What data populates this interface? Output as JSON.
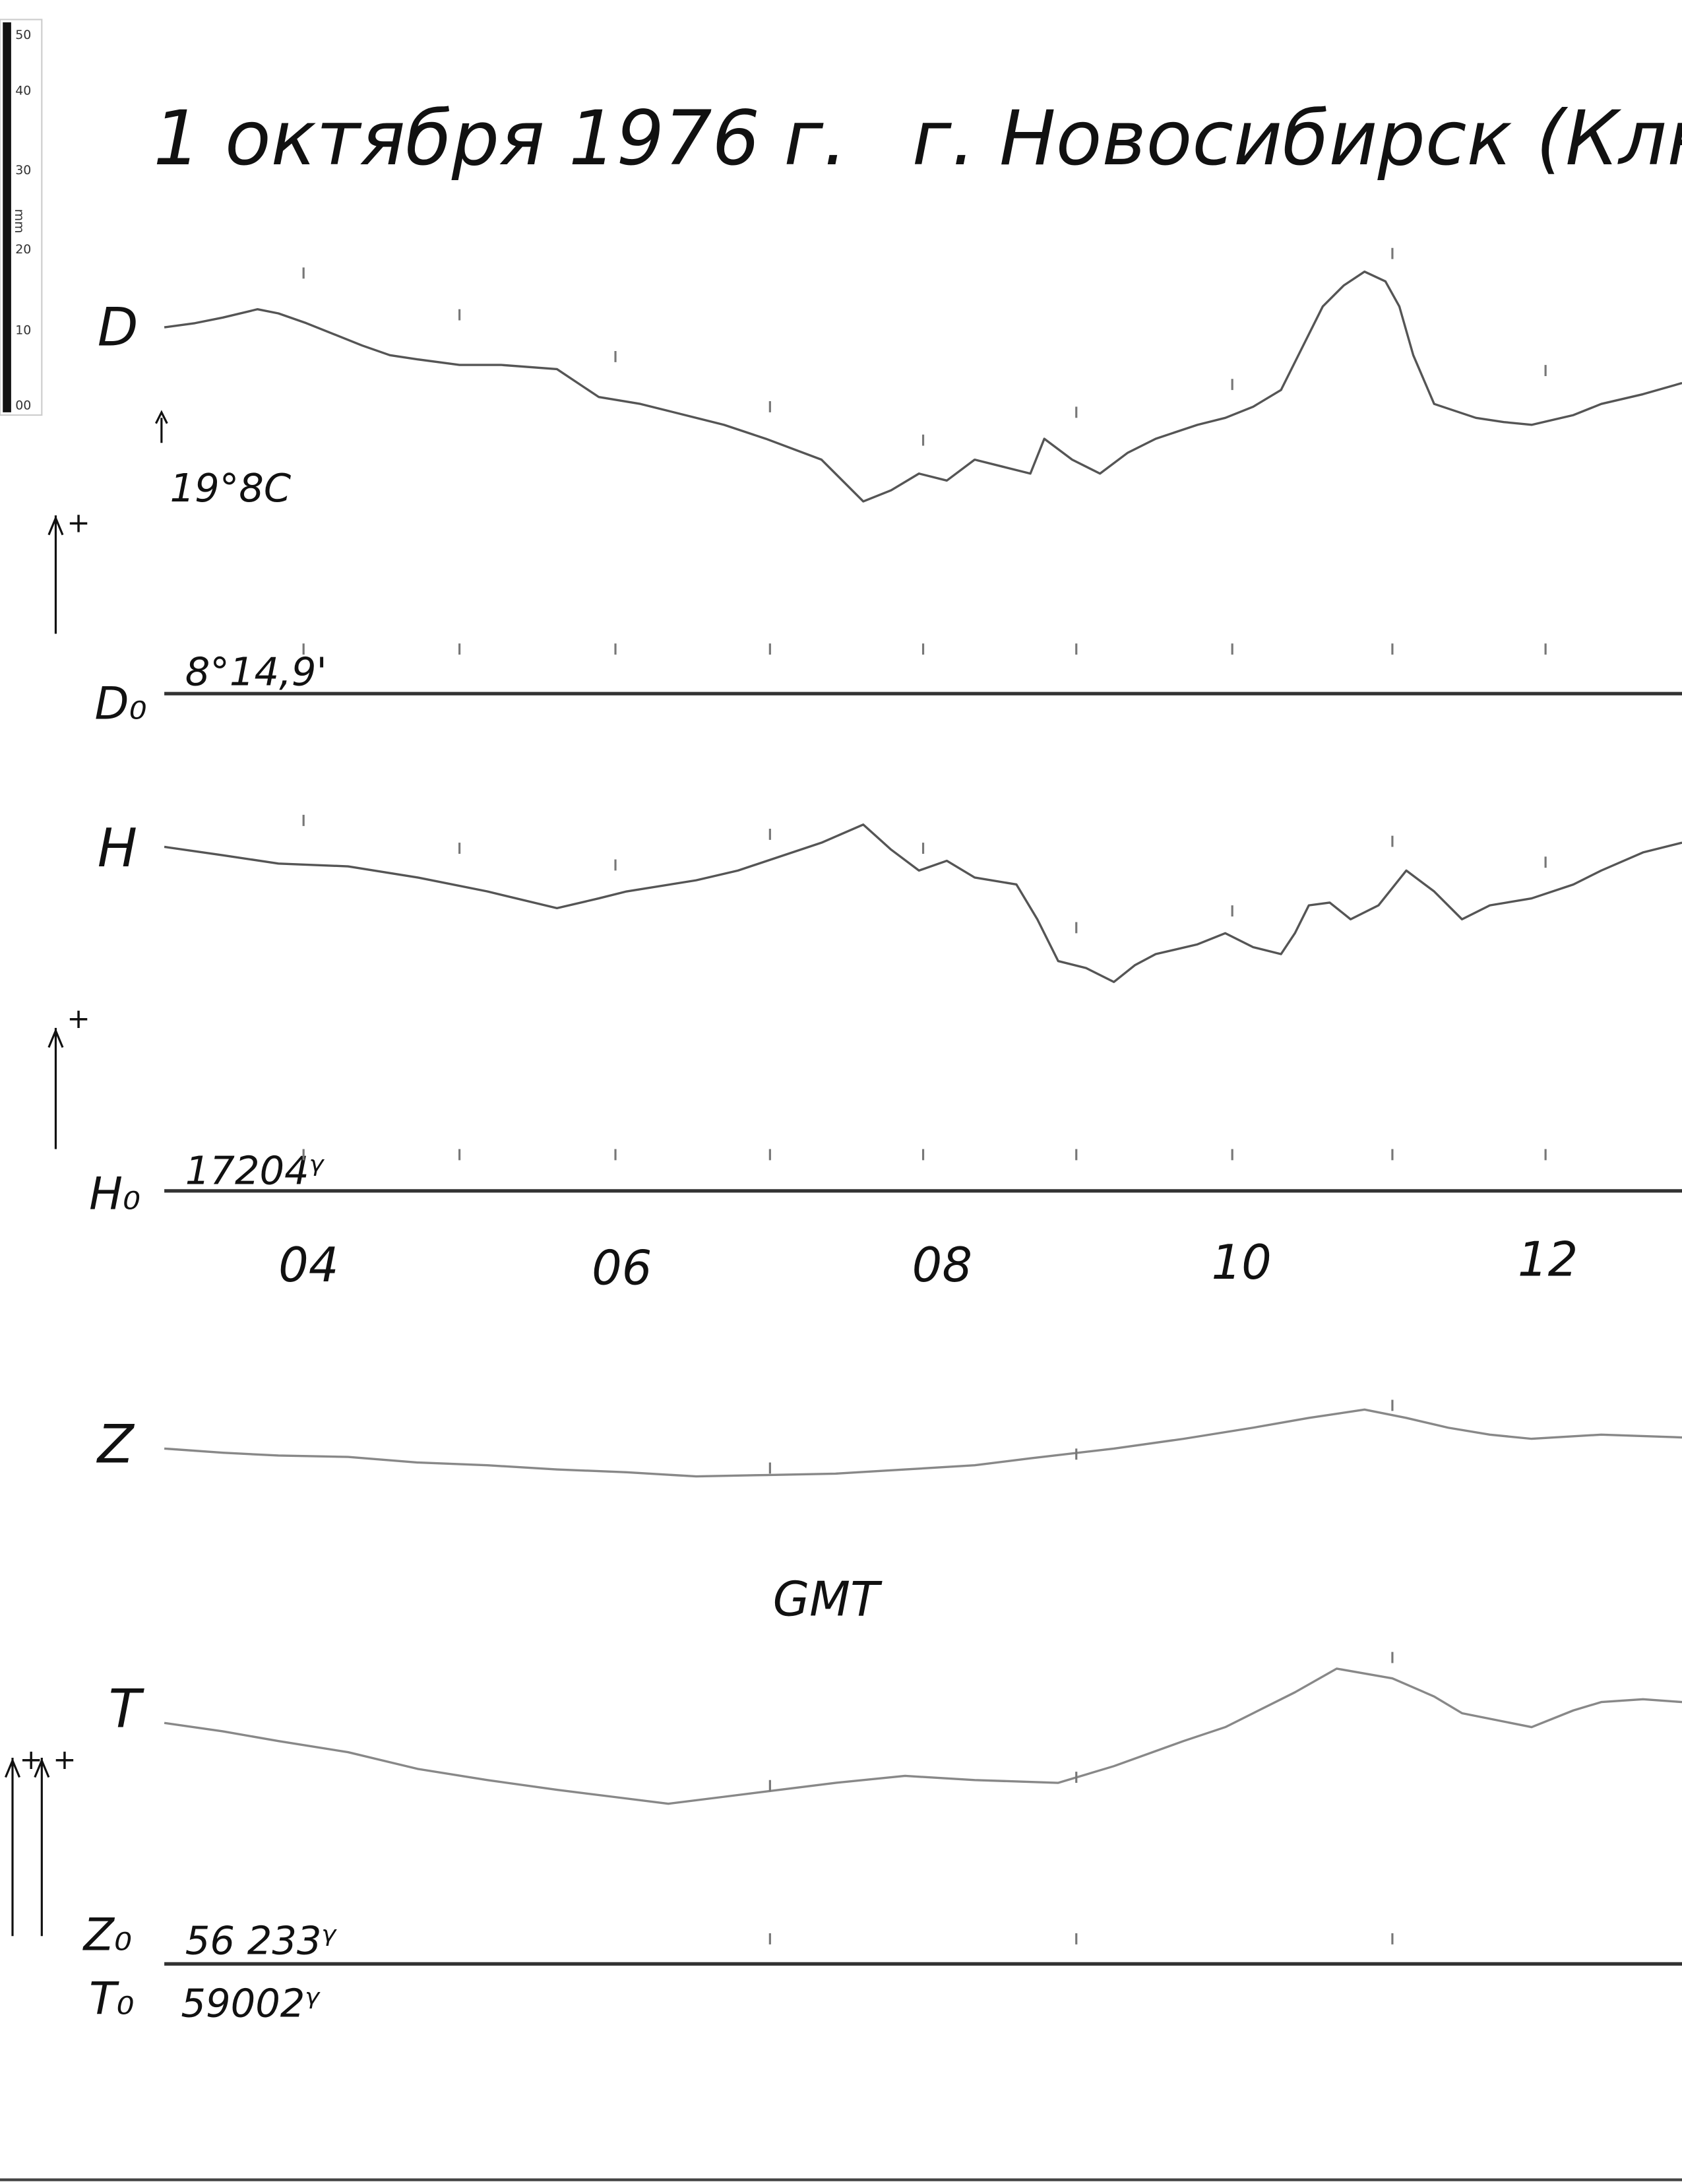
{
  "ruler": {
    "ticks": [
      "50",
      "40",
      "30",
      "20",
      "10",
      "00"
    ],
    "unit": "mm"
  },
  "header": {
    "date": "1 октября 1976 г.",
    "place": "г. Новосибирск (Ключ"
  },
  "traces": [
    {
      "label": "D",
      "note": "19°8C",
      "base_label": "D₀",
      "base_value": "8°14,9'"
    },
    {
      "label": "H",
      "base_label": "H₀",
      "base_value": "17204ᵞ"
    },
    {
      "label": "Z",
      "base_label": "Z₀",
      "base_value": "56 233ᵞ"
    },
    {
      "label": "T",
      "base_label": "T₀",
      "base_value": "59002ᵞ"
    }
  ],
  "polarity": [
    "+",
    "+",
    "+",
    "+"
  ],
  "time_axis": {
    "labels": [
      "04",
      "06",
      "08",
      "10",
      "12"
    ],
    "unit": "GMT"
  }
}
